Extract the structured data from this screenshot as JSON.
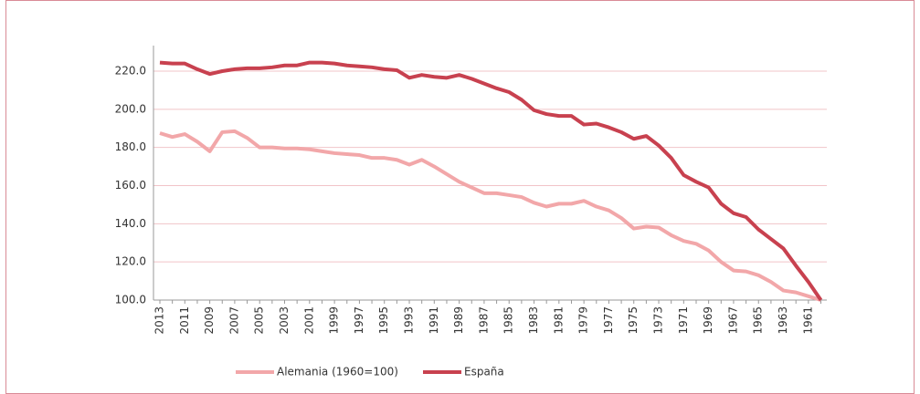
{
  "chart_data": {
    "type": "line",
    "categories": [
      "2013",
      null,
      "2011",
      null,
      "2009",
      null,
      "2007",
      null,
      "2005",
      null,
      "2003",
      null,
      "2001",
      null,
      "1999",
      null,
      "1997",
      null,
      "1995",
      null,
      "1993",
      null,
      "1991",
      null,
      "1989",
      null,
      "1987",
      null,
      "1985",
      null,
      "1983",
      null,
      "1981",
      null,
      "1979",
      null,
      "1977",
      null,
      "1975",
      null,
      "1973",
      null,
      "1971",
      null,
      "1969",
      null,
      "1967",
      null,
      "1965",
      null,
      "1963",
      null,
      "1961",
      null
    ],
    "series": [
      {
        "name": "Alemania (1960=100)",
        "color": "#f2a7a9",
        "values": [
          187.5,
          185.5,
          187,
          183,
          178,
          188,
          188.5,
          185,
          180,
          180,
          179.5,
          179.5,
          179,
          178,
          177,
          176.5,
          176,
          174.5,
          174.5,
          173.5,
          171,
          173.5,
          170,
          166,
          162,
          159,
          156,
          156,
          155,
          154,
          151,
          149,
          150.5,
          150.5,
          152,
          149,
          147,
          143,
          137.5,
          138.5,
          138,
          134,
          131,
          129.5,
          126,
          120,
          115.5,
          115,
          113,
          109.5,
          105,
          104,
          102,
          100
        ]
      },
      {
        "name": "España",
        "color": "#c8414f",
        "values": [
          224.5,
          224,
          224,
          221,
          218.5,
          220,
          221,
          221.5,
          221.5,
          222,
          223,
          223,
          224.5,
          224.5,
          224,
          223,
          222.5,
          222,
          221,
          220.5,
          216.5,
          218,
          217,
          216.5,
          218,
          216,
          213.5,
          211,
          209,
          205,
          199.5,
          197.5,
          196.5,
          196.5,
          192,
          192.5,
          190.5,
          188,
          184.5,
          186,
          181,
          174.5,
          165.5,
          162,
          159,
          150.5,
          145.5,
          143.5,
          137,
          132,
          127,
          118,
          109.5,
          100
        ]
      }
    ],
    "ylim": [
      100,
      226
    ],
    "yticks": [
      {
        "value": 100,
        "label": "100.0"
      },
      {
        "value": 120,
        "label": "120.0"
      },
      {
        "value": 140,
        "label": "140.0"
      },
      {
        "value": 160,
        "label": "160.0"
      },
      {
        "value": 180,
        "label": "180.0"
      },
      {
        "value": 200,
        "label": "200.0"
      },
      {
        "value": 220,
        "label": "220.0"
      }
    ],
    "grid": true,
    "legend": "bottom"
  }
}
